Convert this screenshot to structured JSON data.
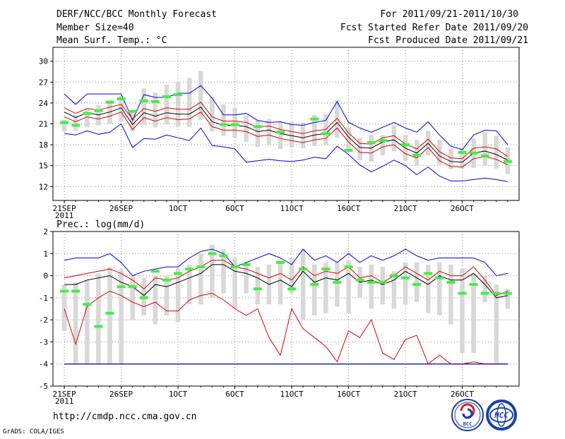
{
  "header": {
    "title": "DERF/NCC/BCC Monthly Forecast",
    "member_size": "Member Size=40",
    "variable": "Mean Surf. Temp.: °C",
    "period": "For 2011/09/21-2011/10/30",
    "started": "Fcst Started Refer Date 2011/09/20",
    "produced": "Fcst Produced Date 2011/09/21"
  },
  "footer": {
    "url": "http://cmdp.ncc.cma.gov.cn",
    "credit": "GrADS: COLA/IGES",
    "logo_bcc": "BCC",
    "logo_ncc": "NCC"
  },
  "colors": {
    "ensemble_max_min": "#0000dd",
    "ensemble_mean": "#000000",
    "ensemble_spread": "#dd0000",
    "quartile_box": "#d8d8d8",
    "observation": "#44ee44",
    "grid": "#888888"
  },
  "chart_data": [
    {
      "type": "line",
      "title": "Mean Surf. Temp.: °C",
      "x_tick_labels": [
        "21SEP",
        "26SEP",
        "1OCT",
        "6OCT",
        "11OCT",
        "16OCT",
        "21OCT",
        "26OCT"
      ],
      "x_tick_days": [
        1,
        6,
        11,
        16,
        21,
        26,
        31,
        36
      ],
      "year_label": "2011",
      "ylim": [
        10,
        32
      ],
      "yticks": [
        12,
        15,
        18,
        21,
        24,
        27,
        30
      ],
      "days": [
        1,
        2,
        3,
        4,
        5,
        6,
        7,
        8,
        9,
        10,
        11,
        12,
        13,
        14,
        15,
        16,
        17,
        18,
        19,
        20,
        21,
        22,
        23,
        24,
        25,
        26,
        27,
        28,
        29,
        30,
        31,
        32,
        33,
        34,
        35,
        36,
        37,
        38,
        39,
        40
      ],
      "series": [
        {
          "name": "max",
          "values": [
            25.3,
            23.8,
            25.3,
            25.3,
            25.3,
            25.3,
            21.5,
            25.2,
            24.8,
            24.8,
            25.4,
            25.4,
            26.5,
            24.7,
            22.3,
            22.3,
            22.5,
            21.5,
            21.2,
            21.3,
            20.9,
            20.8,
            21.2,
            21.5,
            24.2,
            21.2,
            20.4,
            19.8,
            20.5,
            21.2,
            20.4,
            19.8,
            21.3,
            19.4,
            17.8,
            17.3,
            19.4,
            20.1,
            20.0,
            18.0
          ]
        },
        {
          "name": "upper",
          "values": [
            23.3,
            22.5,
            23.2,
            23.0,
            23.4,
            23.8,
            21.7,
            23.2,
            22.8,
            23.3,
            23.1,
            23.1,
            24.1,
            22.0,
            21.4,
            21.4,
            21.2,
            20.5,
            20.7,
            20.2,
            19.9,
            19.6,
            20.0,
            20.2,
            21.8,
            19.7,
            18.2,
            18.1,
            19.0,
            19.3,
            18.1,
            17.4,
            18.8,
            17.0,
            16.1,
            16.0,
            17.5,
            17.7,
            17.4,
            16.3
          ]
        },
        {
          "name": "mean",
          "values": [
            22.7,
            21.9,
            22.6,
            22.3,
            22.7,
            23.3,
            20.9,
            22.6,
            22.1,
            22.6,
            22.4,
            22.4,
            23.4,
            21.3,
            20.8,
            20.8,
            20.6,
            19.9,
            20.1,
            19.6,
            19.3,
            19.0,
            19.4,
            19.6,
            21.2,
            19.1,
            17.6,
            17.5,
            18.4,
            18.7,
            17.5,
            16.8,
            18.2,
            16.4,
            15.6,
            15.5,
            16.8,
            17.1,
            16.6,
            15.8
          ]
        },
        {
          "name": "lower",
          "values": [
            22.0,
            21.3,
            22.0,
            21.7,
            22.1,
            22.7,
            20.2,
            21.9,
            21.4,
            21.9,
            21.6,
            21.7,
            22.7,
            20.6,
            20.1,
            20.1,
            19.9,
            19.2,
            19.4,
            18.9,
            18.6,
            18.3,
            18.7,
            18.9,
            20.4,
            18.4,
            16.9,
            16.8,
            17.7,
            18.0,
            16.7,
            16.1,
            17.6,
            15.7,
            14.9,
            14.8,
            16.0,
            16.3,
            15.9,
            15.1
          ]
        },
        {
          "name": "min",
          "values": [
            19.6,
            19.4,
            20.0,
            19.5,
            19.8,
            21.0,
            17.6,
            18.9,
            18.8,
            19.4,
            19.0,
            18.6,
            20.4,
            17.9,
            17.7,
            17.4,
            15.5,
            15.7,
            15.9,
            15.7,
            15.6,
            15.8,
            16.2,
            16.0,
            17.8,
            16.6,
            15.1,
            14.1,
            14.9,
            15.8,
            15.0,
            13.7,
            14.8,
            13.5,
            12.8,
            12.8,
            13.0,
            13.2,
            13.0,
            12.7
          ]
        }
      ],
      "boxes": {
        "low": [
          19.9,
          20.0,
          20.5,
          20.8,
          21.0,
          21.3,
          19.9,
          20.9,
          20.5,
          20.9,
          20.6,
          20.6,
          21.6,
          19.9,
          19.3,
          19.0,
          18.4,
          17.7,
          18.0,
          17.4,
          17.6,
          17.5,
          17.8,
          18.0,
          19.0,
          17.3,
          15.8,
          15.6,
          16.5,
          17.1,
          15.7,
          15.0,
          16.5,
          15.1,
          14.5,
          14.6,
          14.7,
          15.0,
          14.6,
          13.8
        ],
        "high": [
          21.6,
          22.3,
          23.2,
          23.7,
          24.4,
          25.0,
          22.6,
          26.1,
          25.5,
          26.6,
          27.0,
          27.6,
          28.6,
          24.9,
          23.8,
          23.3,
          22.2,
          21.5,
          21.7,
          21.3,
          21.3,
          21.2,
          22.3,
          22.4,
          24.4,
          20.5,
          19.0,
          19.4,
          19.4,
          20.8,
          19.4,
          18.7,
          20.0,
          18.7,
          17.4,
          17.5,
          18.9,
          19.8,
          19.3,
          17.6
        ]
      },
      "observed": [
        21.2,
        20.8,
        22.5,
        22.9,
        24.1,
        24.6,
        22.8,
        24.3,
        24.2,
        24.9,
        25.2,
        null,
        null,
        null,
        20.9,
        20.9,
        null,
        20.6,
        null,
        19.8,
        null,
        null,
        21.7,
        19.6,
        null,
        17.2,
        null,
        18.3,
        18.6,
        null,
        18.0,
        16.5,
        null,
        null,
        null,
        16.9,
        16.8,
        16.4,
        null,
        15.6
      ]
    },
    {
      "type": "line",
      "title": "Prec.: log(mm/d)",
      "x_tick_labels": [
        "21SEP",
        "26SEP",
        "1OCT",
        "6OCT",
        "11OCT",
        "16OCT",
        "21OCT",
        "26OCT"
      ],
      "x_tick_days": [
        1,
        6,
        11,
        16,
        21,
        26,
        31,
        36
      ],
      "year_label": "2011",
      "ylim": [
        -5,
        2
      ],
      "yticks": [
        -5,
        -4,
        -3,
        -2,
        -1,
        0,
        1,
        2
      ],
      "baseline": -4,
      "days": [
        1,
        2,
        3,
        4,
        5,
        6,
        7,
        8,
        9,
        10,
        11,
        12,
        13,
        14,
        15,
        16,
        17,
        18,
        19,
        20,
        21,
        22,
        23,
        24,
        25,
        26,
        27,
        28,
        29,
        30,
        31,
        32,
        33,
        34,
        35,
        36,
        37,
        38,
        39,
        40
      ],
      "series": [
        {
          "name": "max",
          "values": [
            0.7,
            0.8,
            0.8,
            0.8,
            1.0,
            0.6,
            0.0,
            0.2,
            0.3,
            0.4,
            0.4,
            0.8,
            1.1,
            1.2,
            1.0,
            0.4,
            0.6,
            0.8,
            1.0,
            0.8,
            0.5,
            1.2,
            0.7,
            0.9,
            0.6,
            1.0,
            0.6,
            0.9,
            0.7,
            0.9,
            1.2,
            0.9,
            0.7,
            0.8,
            0.8,
            0.8,
            0.8,
            0.6,
            0.0,
            0.1
          ]
        },
        {
          "name": "upper",
          "values": [
            -0.1,
            0.0,
            0.1,
            0.2,
            0.3,
            0.1,
            -0.2,
            -0.6,
            -0.1,
            -0.2,
            -0.1,
            0.2,
            0.4,
            0.7,
            0.7,
            0.4,
            0.3,
            0.1,
            -0.1,
            0.1,
            -0.2,
            0.4,
            0.0,
            0.2,
            0.1,
            0.4,
            -0.1,
            0.0,
            -0.3,
            0.0,
            0.4,
            0.1,
            -0.2,
            0.2,
            0.0,
            0.0,
            0.4,
            -0.2,
            -0.9,
            -0.7
          ]
        },
        {
          "name": "mean",
          "values": [
            -0.4,
            -0.4,
            -0.2,
            -0.1,
            0.0,
            -0.3,
            -0.5,
            -0.9,
            -0.4,
            -0.5,
            -0.3,
            -0.1,
            0.1,
            0.5,
            0.5,
            0.2,
            0.1,
            -0.1,
            -0.4,
            -0.2,
            -0.5,
            0.2,
            -0.3,
            -0.1,
            -0.2,
            0.1,
            -0.3,
            -0.2,
            -0.4,
            -0.2,
            0.2,
            -0.1,
            -0.4,
            0.0,
            -0.2,
            -0.2,
            0.1,
            -0.4,
            -1.0,
            -0.9
          ]
        },
        {
          "name": "lower",
          "values": [
            -1.5,
            -3.1,
            -1.4,
            -1.0,
            -0.7,
            -0.9,
            -1.2,
            -1.4,
            -1.2,
            -1.6,
            -1.6,
            -1.1,
            -0.9,
            -0.8,
            -1.1,
            -1.5,
            -1.8,
            -1.5,
            -2.8,
            -3.6,
            -1.5,
            -2.4,
            -2.8,
            -3.2,
            -3.9,
            -2.5,
            -2.8,
            -2.0,
            -3.5,
            -3.8,
            -2.9,
            -2.7,
            -4.0,
            -3.6,
            -4.0,
            -4.0,
            -3.9,
            -4.0,
            -4.0,
            -4.0
          ]
        },
        {
          "name": "min",
          "values": [
            -4.0,
            -4.0,
            -4.0,
            -4.0,
            -4.0,
            -4.0,
            -4.0,
            -4.0,
            -4.0,
            -4.0,
            -4.0,
            -4.0,
            -4.0,
            -4.0,
            -4.0,
            -4.0,
            -4.0,
            -4.0,
            -4.0,
            -4.0,
            -4.0,
            -4.0,
            -4.0,
            -4.0,
            -4.0,
            -4.0,
            -4.0,
            -4.0,
            -4.0,
            -4.0,
            -4.0,
            -4.0,
            -4.0,
            -4.0,
            -4.0,
            -4.0,
            -4.0,
            -4.0,
            -4.0,
            -4.0
          ]
        }
      ],
      "boxes": {
        "low": [
          -2.5,
          -4.0,
          -4.0,
          -4.0,
          -4.0,
          -4.0,
          -2.0,
          -1.8,
          -2.2,
          -1.8,
          -2.1,
          -1.3,
          -1.3,
          -1.0,
          -0.8,
          -1.5,
          -0.8,
          -1.3,
          -1.3,
          -1.3,
          -0.8,
          -2.0,
          -1.8,
          -1.7,
          -1.4,
          -1.7,
          -1.0,
          -1.5,
          -1.3,
          -1.5,
          -1.3,
          -1.2,
          -1.7,
          -1.8,
          -2.2,
          -3.5,
          -3.5,
          -1.2,
          -4.0,
          -1.5
        ],
        "high": [
          -0.4,
          -0.3,
          -0.2,
          0.1,
          0.4,
          0.3,
          0.0,
          -0.1,
          0.0,
          0.0,
          0.3,
          0.5,
          1.0,
          1.4,
          1.2,
          0.8,
          0.6,
          0.4,
          0.5,
          0.6,
          0.8,
          1.2,
          0.5,
          0.6,
          0.6,
          0.7,
          0.4,
          0.5,
          0.4,
          0.2,
          0.6,
          0.6,
          0.5,
          0.6,
          0.5,
          0.3,
          0.1,
          0.0,
          -0.4,
          -0.6
        ]
      },
      "observed": [
        -0.7,
        -0.7,
        -1.3,
        -2.3,
        -1.7,
        -0.5,
        -0.5,
        -1.0,
        0.2,
        -0.2,
        0.1,
        0.3,
        0.4,
        1.0,
        0.9,
        0.4,
        0.5,
        -0.6,
        null,
        0.6,
        -0.6,
        0.3,
        -0.4,
        0.3,
        -0.3,
        0.4,
        -0.2,
        -0.3,
        -0.3,
        0.0,
        -0.1,
        -0.4,
        0.1,
        -0.1,
        -0.3,
        -0.8,
        -0.4,
        -0.8,
        -0.8,
        -0.8
      ]
    }
  ]
}
